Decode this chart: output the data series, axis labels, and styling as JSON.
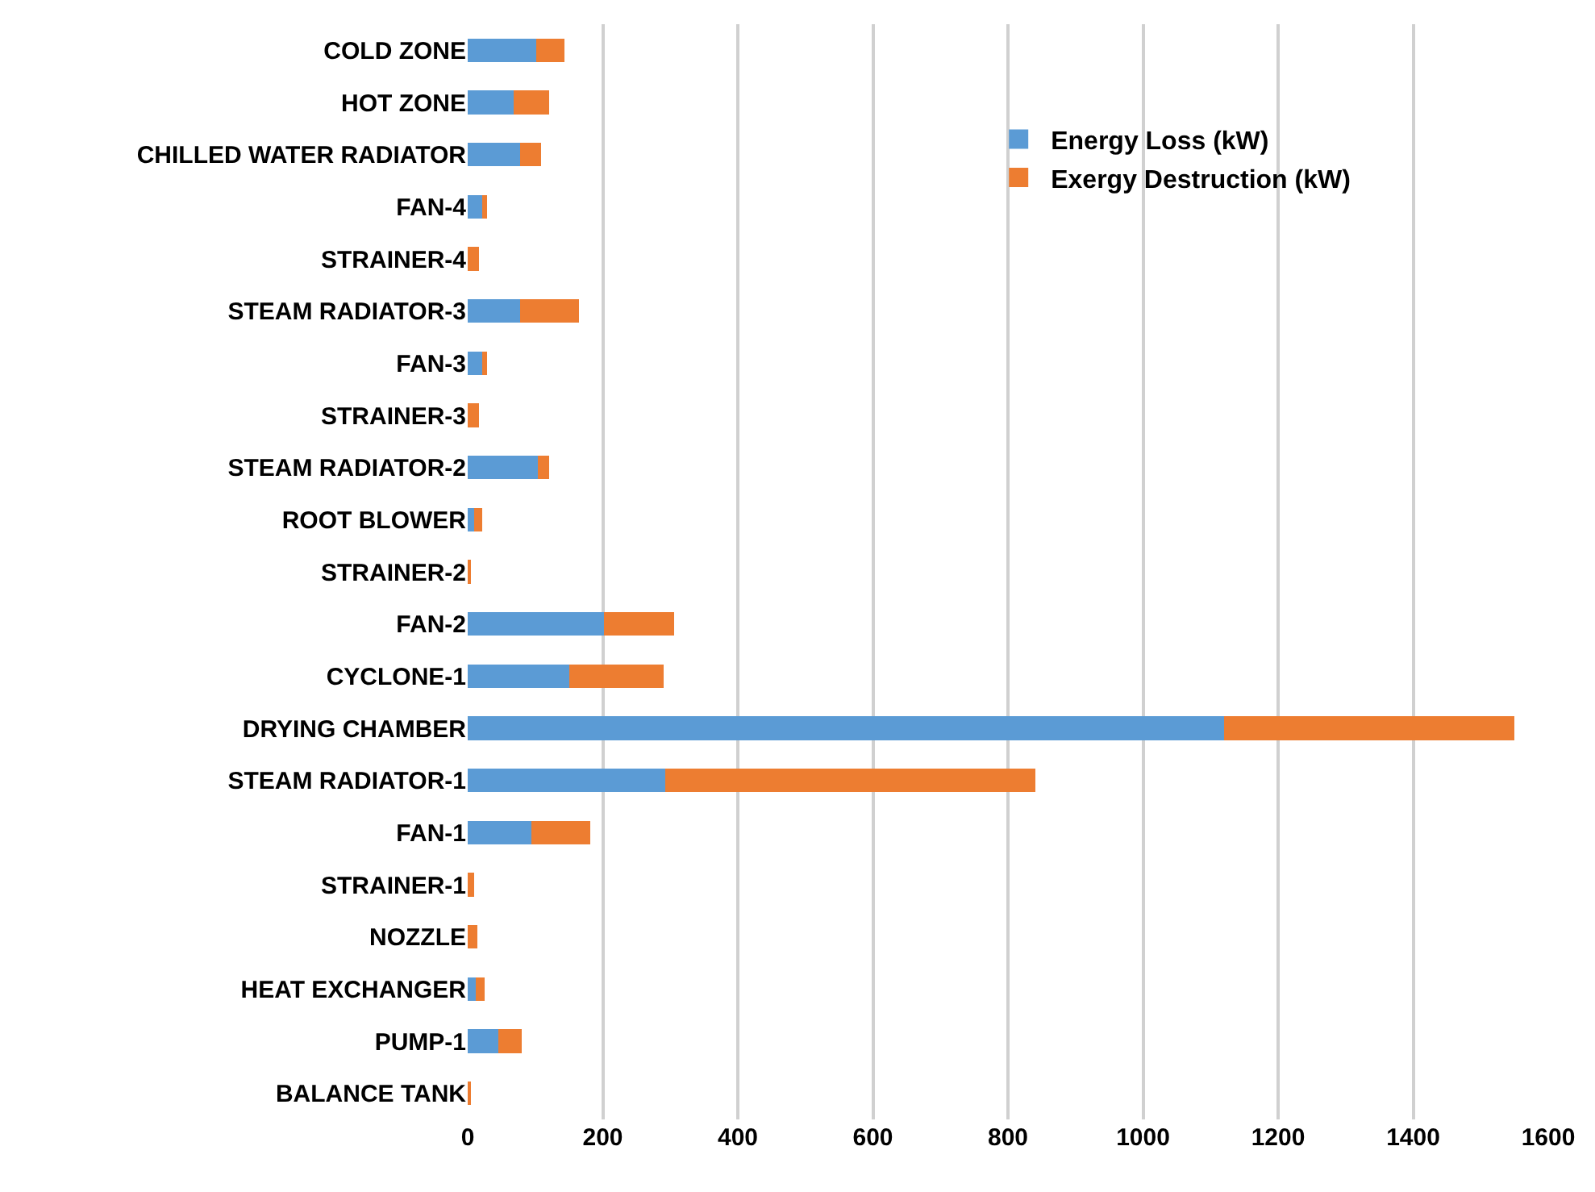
{
  "chart_data": {
    "type": "bar",
    "orientation": "horizontal",
    "stacked": true,
    "categories": [
      "COLD ZONE",
      "HOT ZONE",
      "CHILLED WATER RADIATOR",
      "FAN-4",
      "STRAINER-4",
      "STEAM RADIATOR-3",
      "FAN-3",
      "STRAINER-3",
      "STEAM RADIATOR-2",
      "ROOT BLOWER",
      "STRAINER-2",
      "FAN-2",
      "CYCLONE-1",
      "DRYING CHAMBER",
      "STEAM RADIATOR-1",
      "FAN-1",
      "STRAINER-1",
      "NOZZLE",
      "HEAT EXCHANGER",
      "PUMP-1",
      "BALANCE TANK"
    ],
    "series": [
      {
        "name": "Energy Loss (kW)",
        "color": "#5b9bd5",
        "values": [
          102,
          68,
          78,
          22,
          0,
          78,
          22,
          0,
          104,
          10,
          0,
          202,
          151,
          1120,
          293,
          94,
          0,
          0,
          12,
          45,
          0
        ]
      },
      {
        "name": "Exergy Destruction (kW)",
        "color": "#ed7d31",
        "values": [
          41,
          53,
          31,
          7,
          17,
          87,
          7,
          17,
          17,
          12,
          3,
          104,
          139,
          430,
          548,
          87,
          10,
          14,
          13,
          35,
          3
        ]
      }
    ],
    "xlim": [
      0,
      1600
    ],
    "xticks": [
      0,
      200,
      400,
      600,
      800,
      1000,
      1200,
      1400,
      1600
    ],
    "grid": "x",
    "legend": "top right"
  }
}
